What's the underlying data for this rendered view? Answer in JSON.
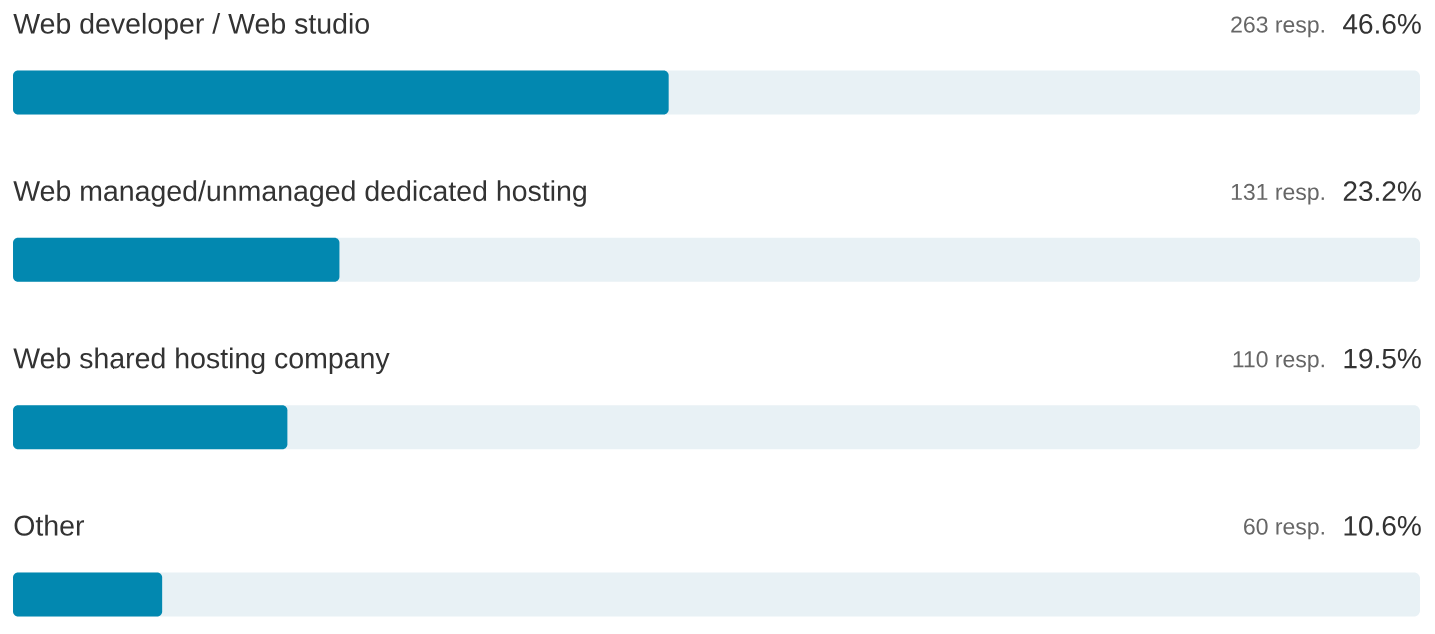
{
  "chart_data": {
    "type": "bar",
    "orientation": "horizontal",
    "categories": [
      "Web developer / Web studio",
      "Web managed/unmanaged dedicated hosting",
      "Web shared hosting company",
      "Other"
    ],
    "values": [
      46.6,
      23.2,
      19.5,
      10.6
    ],
    "color": "#0288b0",
    "value_labels": [
      "46.6%",
      "23.2%",
      "19.5%",
      "10.6%"
    ],
    "annotations": [
      "263 resp.",
      "131 resp.",
      "110 resp.",
      "60 resp."
    ],
    "xlim": [
      0,
      100
    ],
    "tick_labels": false
  }
}
